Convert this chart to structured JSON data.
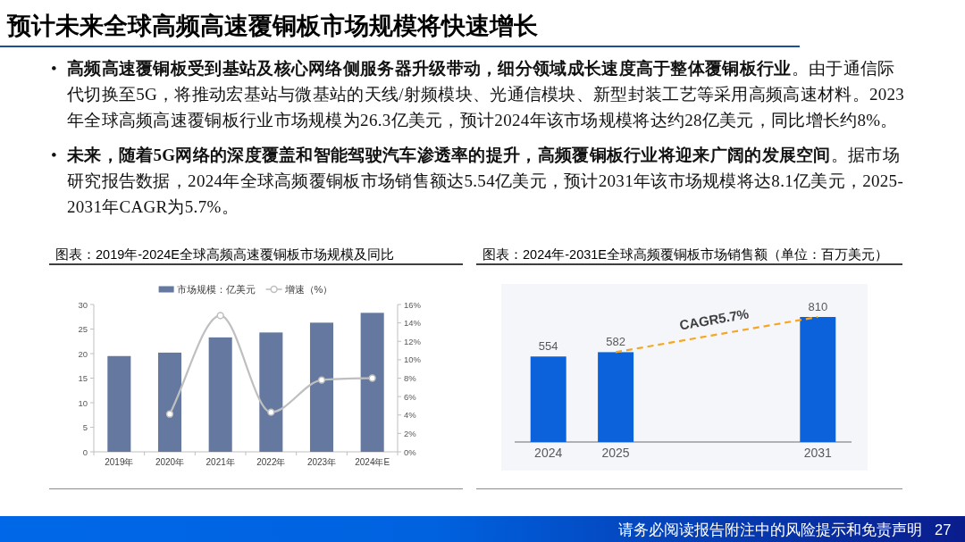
{
  "chart_data": [
    {
      "type": "other",
      "title": "预计未来全球高频高速覆铜板市场规模将快速增长",
      "annotations": [
        "• 高频高速覆铜板受到基站及核心网络侧服务器升级带动，细分领域成长速度高于整体覆铜板行业。由于通信际代切换至5G，将推动宏基站与微基站的天线/射频模块、光通信模块、新型封装工艺等采用高频高速材料。2023年全球高频高速覆铜板行业市场规模为26.3亿美元，预计2024年该市场规模将达约28亿美元，同比增长约8%。",
        "• 未来，随着5G网络的深度覆盖和智能驾驶汽车渗透率的提升，高频覆铜板行业将迎来广阔的发展空间。据市场研究报告数据，2024年全球高频覆铜板市场销售额达5.54亿美元，预计2031年该市场规模将达8.1亿美元，2025-2031年CAGR为5.7%。",
        "请务必阅读报告附注中的风险提示和免责声明",
        "27"
      ]
    },
    {
      "type": "bar",
      "title": "图表：2019年-2024E全球高频高速覆铜板市场规模及同比",
      "categories": [
        "2019年",
        "2020年",
        "2021年",
        "2022年",
        "2023年",
        "2024年E"
      ],
      "series": [
        {
          "name": "市场规模：亿美元",
          "color": "#6578a0",
          "values": [
            19.5,
            20.2,
            23.3,
            24.3,
            26.3,
            28.3
          ]
        },
        {
          "name": "增速（%）",
          "type": "line",
          "axis": "y2",
          "color": "#bfbfbf",
          "marker": "circle",
          "values": [
            null,
            4.1,
            14.8,
            4.3,
            7.8,
            8.0
          ]
        }
      ],
      "ylim": [
        0,
        30
      ],
      "yticks": [
        0,
        5,
        10,
        15,
        20,
        25,
        30
      ],
      "y2lim": [
        0,
        16
      ],
      "y2ticks": [
        {
          "value": 0,
          "label": "0%"
        },
        {
          "value": 2,
          "label": "2%"
        },
        {
          "value": 4,
          "label": "4%"
        },
        {
          "value": 6,
          "label": "6%"
        },
        {
          "value": 8,
          "label": "8%"
        },
        {
          "value": 10,
          "label": "10%"
        },
        {
          "value": 12,
          "label": "12%"
        },
        {
          "value": 14,
          "label": "14%"
        },
        {
          "value": 16,
          "label": "16%"
        }
      ],
      "legend": "top"
    },
    {
      "type": "bar",
      "title": "图表：2024年-2031E全球高频覆铜板市场销售额（单位：百万美元）",
      "categories": [
        "2024",
        "2025",
        null,
        null,
        "2031"
      ],
      "values": [
        554,
        582,
        null,
        null,
        810
      ],
      "color": "#0b62db",
      "data_labels": true,
      "annotations": [
        "CAGR5.7%"
      ]
    }
  ]
}
